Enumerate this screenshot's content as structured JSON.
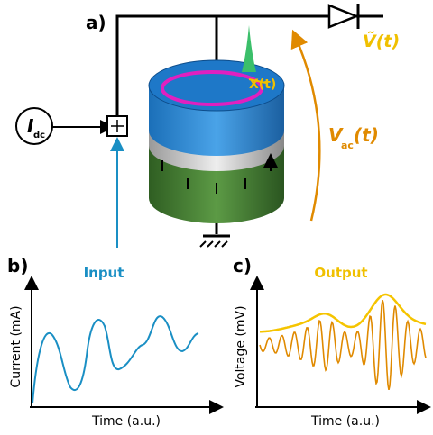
{
  "panel_a": {
    "label": "a)",
    "current_source": {
      "symbol": "I",
      "subscript": "dc"
    },
    "output_voltage": "Ṽ(t)",
    "ac_voltage": {
      "symbol": "V",
      "subscript": "ac",
      "argument": "(t)"
    },
    "magnetization": "X(t)"
  },
  "panel_b": {
    "label": "b)",
    "title": "Input",
    "y_label": "Current (mA)",
    "x_label": "Time (a.u.)"
  },
  "panel_c": {
    "label": "c)",
    "title": "Output",
    "y_label": "Voltage (mV)",
    "x_label": "Time (a.u.)"
  }
}
